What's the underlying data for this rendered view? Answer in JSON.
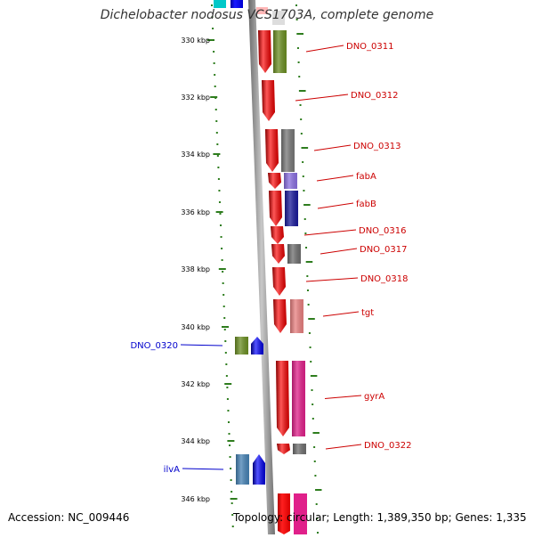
{
  "title": "Dichelobacter nodosus VCS1703A, complete genome",
  "footer": {
    "accession": "Accession: NC_009446",
    "topology": "Topology: circular; Length: 1,389,350 bp; Genes: 1,335"
  },
  "ticks": [
    "330 kbp",
    "332 kbp",
    "334 kbp",
    "336 kbp",
    "338 kbp",
    "340 kbp",
    "342 kbp",
    "344 kbp",
    "346 kbp"
  ],
  "colors": {
    "forward_label": "#cc0000",
    "reverse_label": "#0000cc",
    "backbone": "#888888",
    "scale_dash": "#2e7d1e"
  },
  "genes": [
    {
      "label": "DNO_0311",
      "strand": "forward",
      "box_color": "#6b8e23"
    },
    {
      "label": "DNO_0312",
      "strand": "forward",
      "box_color": ""
    },
    {
      "label": "DNO_0313",
      "strand": "forward",
      "box_color": "#777777"
    },
    {
      "label": "fabA",
      "strand": "forward",
      "box_color": "#8a6fe0"
    },
    {
      "label": "fabB",
      "strand": "forward",
      "box_color": "#1a1a9a"
    },
    {
      "label": "DNO_0316",
      "strand": "forward",
      "box_color": ""
    },
    {
      "label": "DNO_0317",
      "strand": "forward",
      "box_color": "#6e6e6e"
    },
    {
      "label": "DNO_0318",
      "strand": "forward",
      "box_color": ""
    },
    {
      "label": "tgt",
      "strand": "forward",
      "box_color": "#e88080"
    },
    {
      "label": "DNO_0320",
      "strand": "reverse",
      "box_color": "#6b8e23"
    },
    {
      "label": "gyrA",
      "strand": "forward",
      "box_color": "#e0208a"
    },
    {
      "label": "DNO_0322",
      "strand": "forward",
      "box_color": "#6e6e6e"
    },
    {
      "label": "ilvA",
      "strand": "reverse",
      "box_color": "#4682b4"
    }
  ]
}
